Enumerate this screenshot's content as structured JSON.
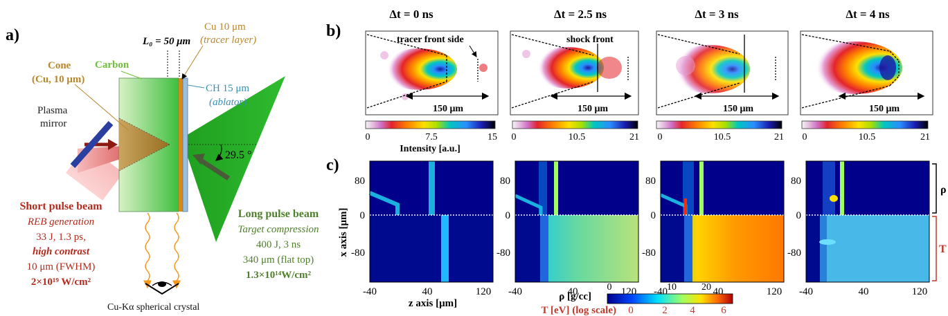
{
  "panel_a": {
    "label": "a)",
    "l0_text": "L₀ = 50 μm",
    "cu_layer": "Cu 10 μm",
    "cu_layer_sub": "(tracer layer)",
    "carbon": "Carbon",
    "cone_title": "Cone",
    "cone_sub": "(Cu, 10 μm)",
    "ch_layer": "CH 15 μm",
    "ch_layer_sub": "(ablator)",
    "plasma_1": "Plasma",
    "plasma_2": "mirror",
    "angle": "29.5 °",
    "short_pulse": [
      "Short pulse beam",
      "REB generation",
      "33 J, 1.3 ps,",
      "high contrast",
      "10 μm (FWHM)",
      "2×10¹⁹ W/cm²"
    ],
    "long_pulse": [
      "Long pulse beam",
      "Target compression",
      "400 J, 3 ns",
      "340 μm (flat top)",
      "1.3×10¹⁴W/cm²"
    ],
    "crystal": "Cu-Kα spherical crystal",
    "colors": {
      "short": "#b52a1c",
      "long": "#4e7f2a",
      "carbon": "#6fbf3a",
      "cone": "#b8862b",
      "ch": "#3a8fb7"
    }
  },
  "panel_b": {
    "label": "b)",
    "titles": [
      "Δt = 0 ns",
      "Δt = 2.5 ns",
      "Δt = 3 ns",
      "Δt = 4 ns"
    ],
    "annotations": [
      "tracer front side",
      "shock front"
    ],
    "scale_label": "150 μm",
    "colorbars": [
      {
        "ticks": [
          "0",
          "7.5",
          "15"
        ]
      },
      {
        "ticks": [
          "0",
          "10.5",
          "21"
        ]
      },
      {
        "ticks": [
          "0",
          "10.5",
          "21"
        ]
      },
      {
        "ticks": [
          "0",
          "10.5",
          "21"
        ]
      }
    ],
    "intensity_label": "Intensity [a.u.]"
  },
  "panel_c": {
    "label": "c)",
    "ylabel": "x axis [μm]",
    "xlabel": "z axis [μm]",
    "yticks": [
      "80",
      "0",
      "-80"
    ],
    "xticks": [
      "-40",
      "40",
      "120"
    ],
    "rho_label": "ρ",
    "t_label": "T",
    "rho_cbar_label": "ρ [g/cc]",
    "rho_cbar_ticks": [
      "0",
      "10",
      "20"
    ],
    "t_cbar_label": "T [eV] (log scale)",
    "t_cbar_ticks": [
      "0",
      "2",
      "4",
      "6"
    ]
  }
}
